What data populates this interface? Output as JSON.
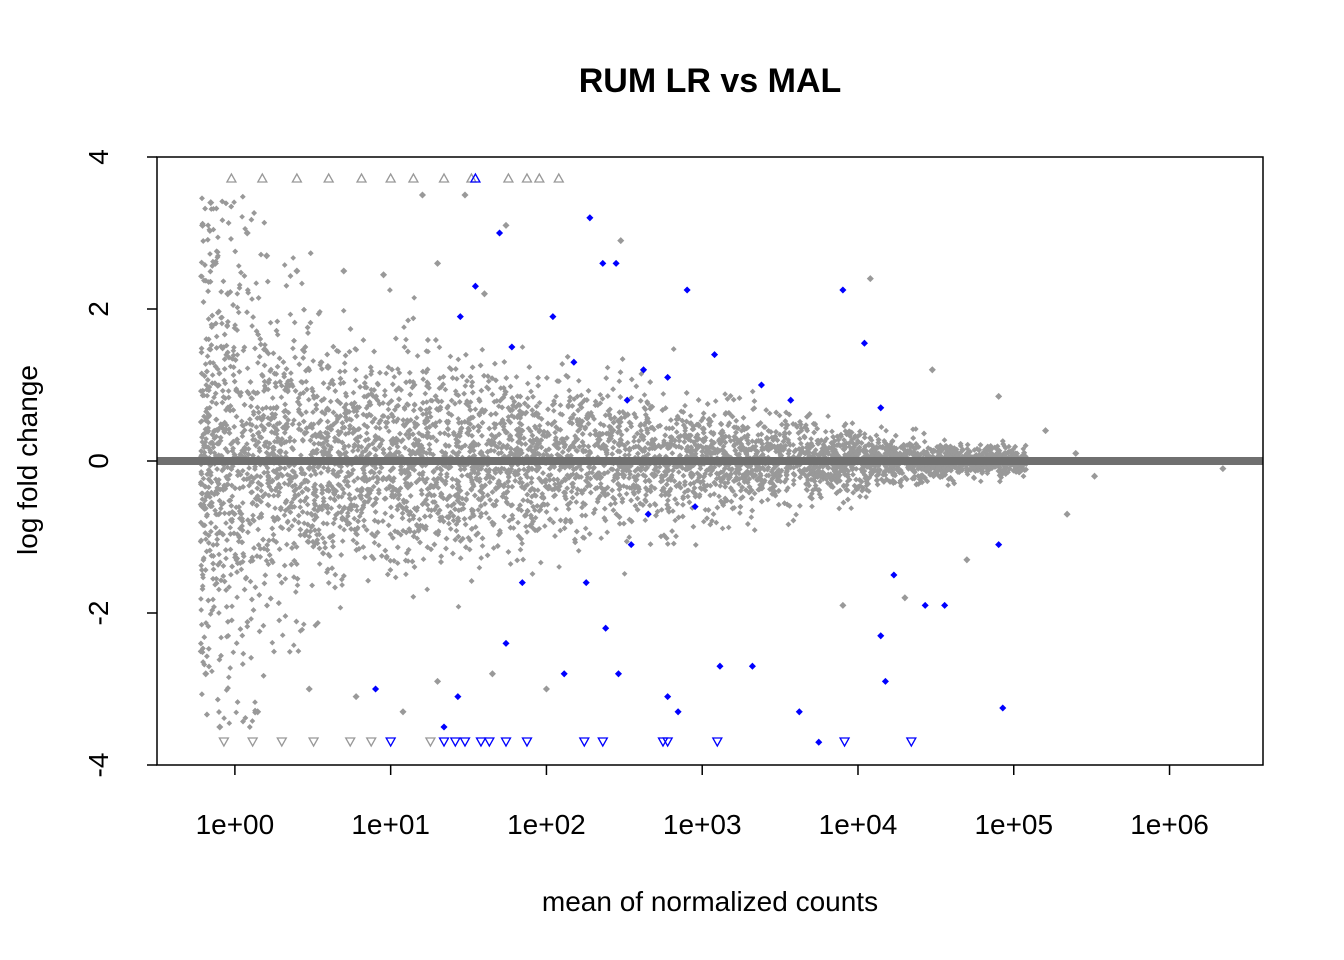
{
  "chart_data": {
    "type": "scatter",
    "title": "RUM LR vs MAL",
    "xlabel": "mean of normalized counts",
    "ylabel": "log fold change",
    "x_scale": "log10",
    "xlim": [
      0.3162,
      3981071
    ],
    "ylim": [
      -4.0,
      4.0
    ],
    "x_ticks": [
      1,
      10,
      100,
      1000,
      10000,
      100000,
      1000000
    ],
    "x_tick_labels": [
      "1e+00",
      "1e+01",
      "1e+02",
      "1e+03",
      "1e+04",
      "1e+05",
      "1e+06"
    ],
    "y_ticks": [
      -4,
      -2,
      0,
      2,
      4
    ],
    "y_tick_labels": [
      "-4",
      "-2",
      "0",
      "2",
      "4"
    ],
    "reference_line": {
      "y": 0,
      "color": "#707070"
    },
    "grid": false,
    "legend": "none",
    "colors": {
      "not_significant": "#999999",
      "significant": "#0000ff",
      "axis": "#000000"
    },
    "series": [
      {
        "name": "",
        "color": "#999999",
        "points": [
          {
            "x": 0.62,
            "y": 3.1
          },
          {
            "x": 0.7,
            "y": 3.4
          },
          {
            "x": 0.75,
            "y": 2.6
          },
          {
            "x": 0.9,
            "y": 2.2
          },
          {
            "x": 1.2,
            "y": 3.0
          },
          {
            "x": 1.6,
            "y": 2.7
          },
          {
            "x": 2.5,
            "y": 2.5
          },
          {
            "x": 5,
            "y": 2.5
          },
          {
            "x": 9,
            "y": 2.45
          },
          {
            "x": 16,
            "y": 3.5
          },
          {
            "x": 20,
            "y": 2.6
          },
          {
            "x": 30,
            "y": 3.5
          },
          {
            "x": 40,
            "y": 2.2
          },
          {
            "x": 55,
            "y": 3.1
          },
          {
            "x": 300,
            "y": 2.9
          },
          {
            "x": 12000,
            "y": 2.4
          },
          {
            "x": 30000,
            "y": 1.2
          },
          {
            "x": 80000,
            "y": 0.85
          },
          {
            "x": 160000,
            "y": 0.4
          },
          {
            "x": 250000,
            "y": 0.1
          },
          {
            "x": 330000,
            "y": -0.2
          },
          {
            "x": 2200000,
            "y": -0.1
          },
          {
            "x": 0.65,
            "y": -2.8
          },
          {
            "x": 0.8,
            "y": -3.5
          },
          {
            "x": 1.4,
            "y": -3.3
          },
          {
            "x": 3,
            "y": -3.0
          },
          {
            "x": 6,
            "y": -3.1
          },
          {
            "x": 12,
            "y": -3.3
          },
          {
            "x": 20,
            "y": -2.9
          },
          {
            "x": 45,
            "y": -2.8
          },
          {
            "x": 100,
            "y": -3.0
          },
          {
            "x": 8000,
            "y": -1.9
          },
          {
            "x": 20000,
            "y": -1.8
          },
          {
            "x": 50000,
            "y": -1.3
          },
          {
            "x": 220000,
            "y": -0.7
          }
        ]
      },
      {
        "name": "",
        "color": "#0000ff",
        "points": [
          {
            "x": 28,
            "y": 1.9
          },
          {
            "x": 35,
            "y": 2.3
          },
          {
            "x": 50,
            "y": 3.0
          },
          {
            "x": 110,
            "y": 1.9
          },
          {
            "x": 190,
            "y": 3.2
          },
          {
            "x": 230,
            "y": 2.6
          },
          {
            "x": 280,
            "y": 2.6
          },
          {
            "x": 420,
            "y": 1.2
          },
          {
            "x": 800,
            "y": 2.25
          },
          {
            "x": 1200,
            "y": 1.4
          },
          {
            "x": 2400,
            "y": 1.0
          },
          {
            "x": 8000,
            "y": 2.25
          },
          {
            "x": 11000,
            "y": 1.55
          },
          {
            "x": 14000,
            "y": 0.7
          },
          {
            "x": 60,
            "y": 1.5
          },
          {
            "x": 150,
            "y": 1.3
          },
          {
            "x": 330,
            "y": 0.8
          },
          {
            "x": 600,
            "y": 1.1
          },
          {
            "x": 3700,
            "y": 0.8
          },
          {
            "x": 8,
            "y": -3.0
          },
          {
            "x": 22,
            "y": -3.5
          },
          {
            "x": 27,
            "y": -3.1
          },
          {
            "x": 55,
            "y": -2.4
          },
          {
            "x": 130,
            "y": -2.8
          },
          {
            "x": 180,
            "y": -1.6
          },
          {
            "x": 240,
            "y": -2.2
          },
          {
            "x": 290,
            "y": -2.8
          },
          {
            "x": 600,
            "y": -3.1
          },
          {
            "x": 700,
            "y": -3.3
          },
          {
            "x": 1300,
            "y": -2.7
          },
          {
            "x": 2100,
            "y": -2.7
          },
          {
            "x": 4200,
            "y": -3.3
          },
          {
            "x": 5600,
            "y": -3.7
          },
          {
            "x": 14000,
            "y": -2.3
          },
          {
            "x": 17000,
            "y": -1.5
          },
          {
            "x": 15000,
            "y": -2.9
          },
          {
            "x": 27000,
            "y": -1.9
          },
          {
            "x": 36000,
            "y": -1.9
          },
          {
            "x": 80000,
            "y": -1.1
          },
          {
            "x": 85000,
            "y": -3.25
          },
          {
            "x": 70,
            "y": -1.6
          },
          {
            "x": 350,
            "y": -1.1
          },
          {
            "x": 900,
            "y": -0.6
          },
          {
            "x": 450,
            "y": -0.7
          }
        ]
      }
    ],
    "out_of_range_markers": [
      {
        "x": 0.95,
        "y": 4,
        "color": "#999999",
        "shape": "triangle-up"
      },
      {
        "x": 1.5,
        "y": 4,
        "color": "#999999",
        "shape": "triangle-up"
      },
      {
        "x": 2.5,
        "y": 4,
        "color": "#999999",
        "shape": "triangle-up"
      },
      {
        "x": 4,
        "y": 4,
        "color": "#999999",
        "shape": "triangle-up"
      },
      {
        "x": 6.5,
        "y": 4,
        "color": "#999999",
        "shape": "triangle-up"
      },
      {
        "x": 10,
        "y": 4,
        "color": "#999999",
        "shape": "triangle-up"
      },
      {
        "x": 14,
        "y": 4,
        "color": "#999999",
        "shape": "triangle-up"
      },
      {
        "x": 22,
        "y": 4,
        "color": "#999999",
        "shape": "triangle-up"
      },
      {
        "x": 33,
        "y": 4,
        "color": "#999999",
        "shape": "triangle-up"
      },
      {
        "x": 35,
        "y": 4,
        "color": "#0000ff",
        "shape": "triangle-up"
      },
      {
        "x": 57,
        "y": 4,
        "color": "#999999",
        "shape": "triangle-up"
      },
      {
        "x": 75,
        "y": 4,
        "color": "#999999",
        "shape": "triangle-up"
      },
      {
        "x": 90,
        "y": 4,
        "color": "#999999",
        "shape": "triangle-up"
      },
      {
        "x": 120,
        "y": 4,
        "color": "#999999",
        "shape": "triangle-up"
      },
      {
        "x": 0.85,
        "y": -4,
        "color": "#999999",
        "shape": "triangle-down"
      },
      {
        "x": 1.3,
        "y": -4,
        "color": "#999999",
        "shape": "triangle-down"
      },
      {
        "x": 2.0,
        "y": -4,
        "color": "#999999",
        "shape": "triangle-down"
      },
      {
        "x": 3.2,
        "y": -4,
        "color": "#999999",
        "shape": "triangle-down"
      },
      {
        "x": 5.5,
        "y": -4,
        "color": "#999999",
        "shape": "triangle-down"
      },
      {
        "x": 7.5,
        "y": -4,
        "color": "#999999",
        "shape": "triangle-down"
      },
      {
        "x": 10,
        "y": -4,
        "color": "#0000ff",
        "shape": "triangle-down"
      },
      {
        "x": 18,
        "y": -4,
        "color": "#999999",
        "shape": "triangle-down"
      },
      {
        "x": 22,
        "y": -4,
        "color": "#0000ff",
        "shape": "triangle-down"
      },
      {
        "x": 26,
        "y": -4,
        "color": "#0000ff",
        "shape": "triangle-down"
      },
      {
        "x": 30,
        "y": -4,
        "color": "#0000ff",
        "shape": "triangle-down"
      },
      {
        "x": 38,
        "y": -4,
        "color": "#0000ff",
        "shape": "triangle-down"
      },
      {
        "x": 43,
        "y": -4,
        "color": "#0000ff",
        "shape": "triangle-down"
      },
      {
        "x": 55,
        "y": -4,
        "color": "#0000ff",
        "shape": "triangle-down"
      },
      {
        "x": 75,
        "y": -4,
        "color": "#0000ff",
        "shape": "triangle-down"
      },
      {
        "x": 175,
        "y": -4,
        "color": "#0000ff",
        "shape": "triangle-down"
      },
      {
        "x": 230,
        "y": -4,
        "color": "#0000ff",
        "shape": "triangle-down"
      },
      {
        "x": 560,
        "y": -4,
        "color": "#0000ff",
        "shape": "triangle-down"
      },
      {
        "x": 600,
        "y": -4,
        "color": "#0000ff",
        "shape": "triangle-down"
      },
      {
        "x": 1250,
        "y": -4,
        "color": "#0000ff",
        "shape": "triangle-down"
      },
      {
        "x": 8200,
        "y": -4,
        "color": "#0000ff",
        "shape": "triangle-down"
      },
      {
        "x": 22000,
        "y": -4,
        "color": "#0000ff",
        "shape": "triangle-down"
      }
    ]
  }
}
